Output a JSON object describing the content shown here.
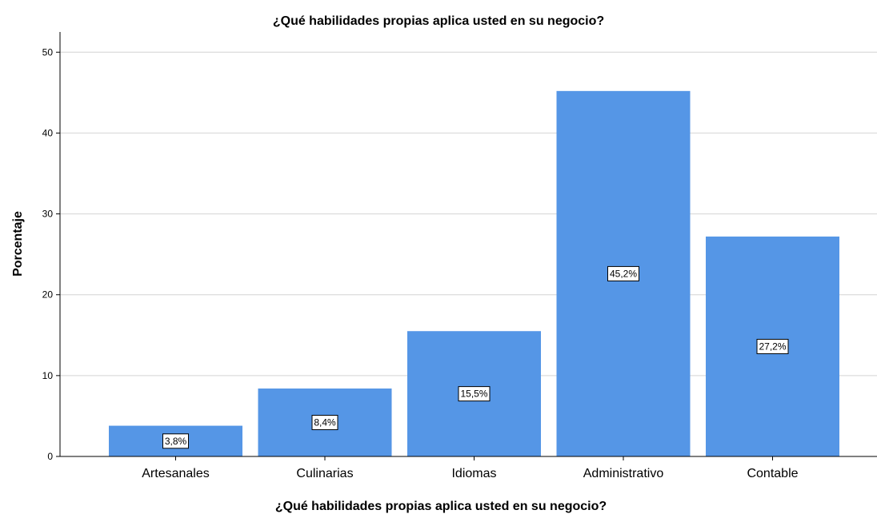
{
  "chart_data": {
    "type": "bar",
    "title": "¿Qué habilidades propias aplica usted en su negocio?",
    "xlabel": "¿Qué habilidades propias aplica usted en su negocio?",
    "ylabel": "Porcentaje",
    "categories": [
      "Artesanales",
      "Culinarias",
      "Idiomas",
      "Administrativo",
      "Contable"
    ],
    "values": [
      3.8,
      8.4,
      15.5,
      45.2,
      27.2
    ],
    "data_labels": [
      "3,8%",
      "8,4%",
      "15,5%",
      "45,2%",
      "27,2%"
    ],
    "ylim": [
      0,
      52.5
    ],
    "yticks": [
      0,
      10,
      20,
      30,
      40,
      50
    ],
    "ytick_labels": [
      "0",
      "10",
      "20",
      "30",
      "40",
      "50"
    ],
    "grid": true,
    "bar_color": "#5596e6"
  }
}
